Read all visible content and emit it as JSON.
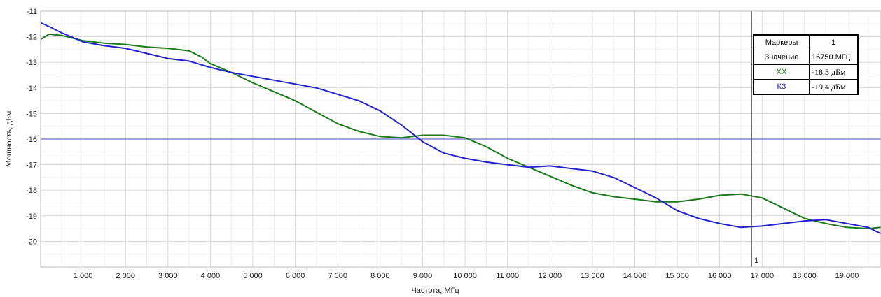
{
  "chart_data": {
    "type": "line",
    "xlabel": "Частота, МГц",
    "ylabel": "Мощность, дБм",
    "xlim": [
      0,
      19800
    ],
    "ylim": [
      -21,
      -11
    ],
    "x_ticks": [
      1000,
      2000,
      3000,
      4000,
      5000,
      6000,
      7000,
      8000,
      9000,
      10000,
      11000,
      12000,
      13000,
      14000,
      15000,
      16000,
      17000,
      18000,
      19000
    ],
    "x_tick_labels": [
      "1 000",
      "2 000",
      "3 000",
      "4 000",
      "5 000",
      "6 000",
      "7 000",
      "8 000",
      "9 000",
      "10 000",
      "11 000",
      "12 000",
      "13 000",
      "14 000",
      "15 000",
      "16 000",
      "17 000",
      "18 000",
      "19 000"
    ],
    "y_ticks": [
      -11,
      -12,
      -13,
      -14,
      -15,
      -16,
      -17,
      -18,
      -19,
      -20
    ],
    "y_tick_labels": [
      "-11",
      "-12",
      "-13",
      "-14",
      "-15",
      "-16",
      "-17",
      "-18",
      "-19",
      "-20"
    ],
    "grid": true,
    "reference_line": {
      "y": -16,
      "color": "#6b6bd1"
    },
    "marker": {
      "x": 16750,
      "label": "1",
      "color": "#444444"
    },
    "series": [
      {
        "name": "ХХ",
        "color": "#1a7a1a",
        "x": [
          0,
          200,
          500,
          1000,
          1500,
          2000,
          2500,
          3000,
          3500,
          3800,
          4000,
          4500,
          5000,
          5500,
          6000,
          6500,
          7000,
          7500,
          8000,
          8500,
          9000,
          9500,
          10000,
          10500,
          11000,
          11500,
          12000,
          12500,
          13000,
          13500,
          14000,
          14500,
          15000,
          15500,
          16000,
          16500,
          17000,
          17500,
          18000,
          18500,
          19000,
          19500,
          19800
        ],
        "y": [
          -12.1,
          -11.9,
          -11.95,
          -12.15,
          -12.25,
          -12.3,
          -12.4,
          -12.45,
          -12.55,
          -12.8,
          -13.05,
          -13.4,
          -13.8,
          -14.15,
          -14.5,
          -14.95,
          -15.4,
          -15.7,
          -15.9,
          -15.95,
          -15.85,
          -15.85,
          -15.95,
          -16.3,
          -16.75,
          -17.1,
          -17.45,
          -17.8,
          -18.1,
          -18.25,
          -18.35,
          -18.45,
          -18.45,
          -18.35,
          -18.2,
          -18.15,
          -18.3,
          -18.7,
          -19.1,
          -19.3,
          -19.45,
          -19.5,
          -19.45
        ]
      },
      {
        "name": "КЗ",
        "color": "#2222cc",
        "x": [
          0,
          200,
          500,
          1000,
          1500,
          2000,
          2500,
          3000,
          3500,
          4000,
          4500,
          5000,
          5500,
          6000,
          6500,
          7000,
          7500,
          8000,
          8500,
          9000,
          9500,
          10000,
          10500,
          11000,
          11500,
          12000,
          12500,
          13000,
          13500,
          14000,
          14500,
          15000,
          15500,
          16000,
          16500,
          17000,
          17500,
          18000,
          18500,
          19000,
          19500,
          19800
        ],
        "y": [
          -11.45,
          -11.6,
          -11.85,
          -12.2,
          -12.35,
          -12.45,
          -12.65,
          -12.85,
          -12.95,
          -13.2,
          -13.4,
          -13.55,
          -13.7,
          -13.85,
          -14.0,
          -14.25,
          -14.5,
          -14.9,
          -15.45,
          -16.1,
          -16.55,
          -16.75,
          -16.9,
          -17.0,
          -17.1,
          -17.05,
          -17.15,
          -17.25,
          -17.5,
          -17.9,
          -18.3,
          -18.8,
          -19.1,
          -19.3,
          -19.45,
          -19.4,
          -19.3,
          -19.2,
          -19.15,
          -19.3,
          -19.45,
          -19.7
        ]
      }
    ]
  },
  "marker_table": {
    "header_label": "Маркеры",
    "header_value": "1",
    "value_label": "Значение",
    "value": "16750 МГц",
    "rows": [
      {
        "label": "ХХ",
        "value": "-18,3 дБм",
        "color": "#1a7a1a"
      },
      {
        "label": "КЗ",
        "value": "-19,4 дБм",
        "color": "#2222cc"
      }
    ]
  }
}
